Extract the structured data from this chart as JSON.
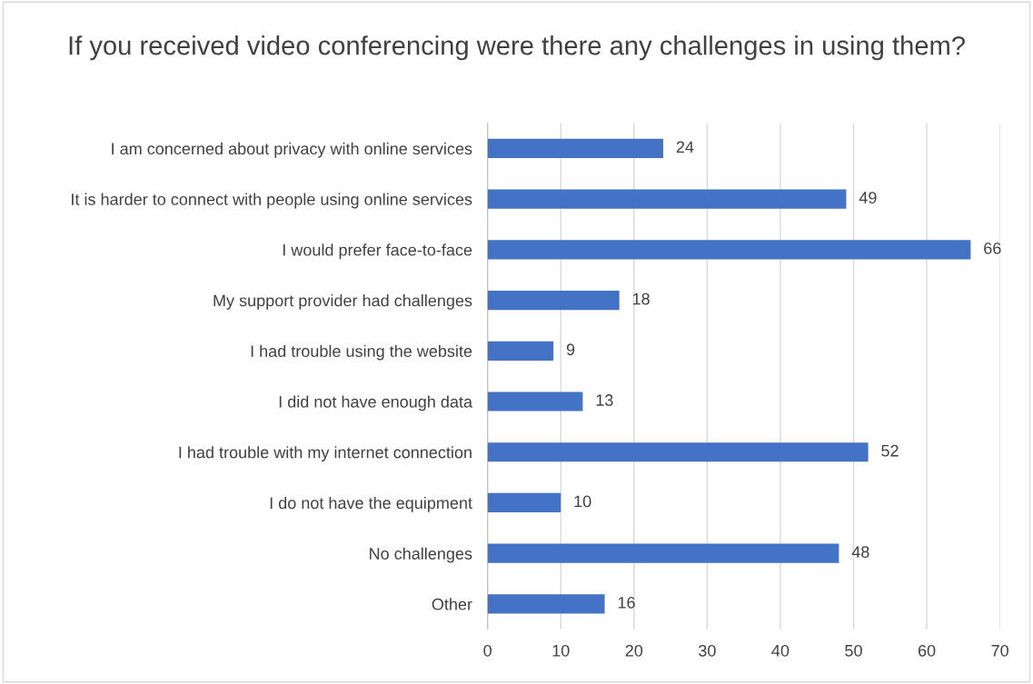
{
  "chart_data": {
    "type": "bar",
    "orientation": "horizontal",
    "title": "If you received video conferencing were there any challenges in using them?",
    "categories": [
      "I am concerned about privacy with online services",
      "It is harder to connect with people using online services",
      "I would prefer face-to-face",
      "My support provider had challenges",
      "I had trouble using the website",
      "I did not have enough data",
      "I had trouble with my internet connection",
      "I do not have the equipment",
      "No challenges",
      "Other"
    ],
    "values": [
      24,
      49,
      66,
      18,
      9,
      13,
      52,
      10,
      48,
      16
    ],
    "color": "#4472c4",
    "xlim": [
      0,
      70
    ],
    "xticks": [
      0,
      10,
      20,
      30,
      40,
      50,
      60,
      70
    ],
    "grid": "x",
    "data_labels": true
  }
}
